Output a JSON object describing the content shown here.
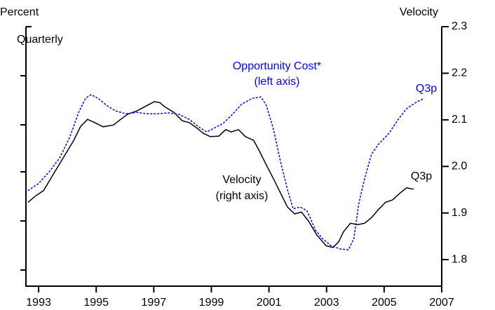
{
  "chart_data": {
    "type": "line",
    "left_axis_label": "Percent",
    "right_axis_label": "Velocity",
    "frequency": "Quarterly",
    "xlim": [
      1992.56,
      2007
    ],
    "ylim": [
      1.743,
      2.3
    ],
    "xticks": [
      1993,
      1995,
      1997,
      1999,
      2001,
      2003,
      2005,
      2007
    ],
    "yticks": [
      1.8,
      1.9,
      {
        "value": 2,
        "label": "2.0"
      },
      2.1,
      2.2,
      2.3
    ],
    "series": [
      {
        "name": "Velocity",
        "color": "#000000",
        "dash": false,
        "x": [
          1992.63,
          1992.88,
          1993.17,
          1993.49,
          1993.85,
          1994.22,
          1994.46,
          1994.7,
          1994.95,
          1995.24,
          1995.6,
          1995.85,
          1996.09,
          1996.41,
          1996.77,
          1997.02,
          1997.21,
          1997.38,
          1997.7,
          1997.99,
          1998.23,
          1998.48,
          1998.72,
          1998.96,
          1999.26,
          1999.5,
          1999.69,
          1999.94,
          2000.18,
          2000.47,
          2000.67,
          2000.91,
          2001.16,
          2001.4,
          2001.64,
          2001.89,
          2002.13,
          2002.37,
          2002.66,
          2002.98,
          2003.22,
          2003.42,
          2003.59,
          2003.83,
          2004.08,
          2004.32,
          2004.56,
          2004.81,
          2005.05,
          2005.29,
          2005.54,
          2005.78,
          2006.03
        ],
        "values": [
          1.923,
          1.936,
          1.948,
          1.981,
          2.018,
          2.056,
          2.086,
          2.101,
          2.094,
          2.085,
          2.089,
          2.101,
          2.112,
          2.119,
          2.131,
          2.139,
          2.137,
          2.128,
          2.116,
          2.098,
          2.094,
          2.083,
          2.071,
          2.064,
          2.065,
          2.079,
          2.074,
          2.079,
          2.064,
          2.056,
          2.033,
          2.003,
          1.973,
          1.943,
          1.913,
          1.898,
          1.902,
          1.883,
          1.853,
          1.83,
          1.826,
          1.838,
          1.86,
          1.878,
          1.875,
          1.878,
          1.89,
          1.908,
          1.923,
          1.928,
          1.942,
          1.954,
          1.951
        ]
      },
      {
        "name": "Opportunity Cost*",
        "color": "#0000ff",
        "dash": true,
        "x": [
          1992.63,
          1992.99,
          1993.36,
          1993.73,
          1994.09,
          1994.39,
          1994.63,
          1994.82,
          1995.07,
          1995.36,
          1995.68,
          1996.04,
          1996.41,
          1996.77,
          1997.14,
          1997.5,
          1997.87,
          1998.23,
          1998.6,
          1998.84,
          1999.09,
          1999.4,
          1999.69,
          2000.06,
          2000.42,
          2000.72,
          2000.91,
          2001.16,
          2001.4,
          2001.64,
          2001.84,
          2002.08,
          2002.32,
          2002.62,
          2002.86,
          2003.15,
          2003.47,
          2003.76,
          2003.95,
          2004.12,
          2004.32,
          2004.56,
          2004.81,
          2005.17,
          2005.49,
          2005.78,
          2006.15,
          2006.39
        ],
        "values": [
          1.948,
          1.963,
          1.988,
          2.018,
          2.064,
          2.116,
          2.146,
          2.154,
          2.146,
          2.131,
          2.119,
          2.113,
          2.116,
          2.113,
          2.113,
          2.115,
          2.112,
          2.101,
          2.083,
          2.074,
          2.082,
          2.092,
          2.109,
          2.134,
          2.146,
          2.149,
          2.131,
          2.079,
          2.011,
          1.951,
          1.909,
          1.913,
          1.905,
          1.863,
          1.845,
          1.83,
          1.823,
          1.821,
          1.845,
          1.92,
          1.973,
          2.026,
          2.048,
          2.071,
          2.101,
          2.124,
          2.139,
          2.146
        ]
      }
    ],
    "annotations": [
      {
        "text": "Opportunity Cost*",
        "color": "#0000ff"
      },
      {
        "text": "(left axis)",
        "color": "#0000ff"
      },
      {
        "text": "Velocity",
        "color": "#000000"
      },
      {
        "text": "(right axis)",
        "color": "#000000"
      },
      {
        "text": "Q3p",
        "color": "#0000ff"
      },
      {
        "text": "Q3p",
        "color": "#000000"
      }
    ]
  }
}
